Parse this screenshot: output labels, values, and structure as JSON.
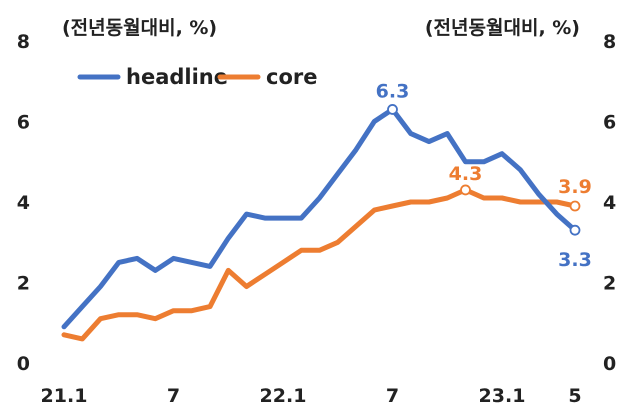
{
  "chart_data": {
    "type": "line",
    "left_axis_unit": "(전년동월대비, %)",
    "right_axis_unit": "(전년동월대비, %)",
    "ylim": [
      0,
      8
    ],
    "y_ticks": [
      "0",
      "2",
      "4",
      "6",
      "8"
    ],
    "x_tick_labels": [
      "21.1",
      "7",
      "22.1",
      "7",
      "23.1",
      "5"
    ],
    "x": [
      "21.1",
      "21.2",
      "21.3",
      "21.4",
      "21.5",
      "21.6",
      "21.7",
      "21.8",
      "21.9",
      "21.10",
      "21.11",
      "21.12",
      "22.1",
      "22.2",
      "22.3",
      "22.4",
      "22.5",
      "22.6",
      "22.7",
      "22.8",
      "22.9",
      "22.10",
      "22.11",
      "22.12",
      "23.1",
      "23.2",
      "23.3",
      "23.4",
      "23.5"
    ],
    "series": [
      {
        "name": "headline",
        "color": "#4472C4",
        "values": [
          0.9,
          1.4,
          1.9,
          2.5,
          2.6,
          2.3,
          2.6,
          2.5,
          2.4,
          3.1,
          3.7,
          3.6,
          3.6,
          3.6,
          4.1,
          4.7,
          5.3,
          6.0,
          6.3,
          5.7,
          5.5,
          5.7,
          5.0,
          5.0,
          5.2,
          4.8,
          4.2,
          3.7,
          3.3
        ]
      },
      {
        "name": "core",
        "color": "#ED7D31",
        "values": [
          0.7,
          0.6,
          1.1,
          1.2,
          1.2,
          1.1,
          1.3,
          1.3,
          1.4,
          2.3,
          1.9,
          2.2,
          2.5,
          2.8,
          2.8,
          3.0,
          3.4,
          3.8,
          3.9,
          4.0,
          4.0,
          4.1,
          4.3,
          4.1,
          4.1,
          4.0,
          4.0,
          4.0,
          3.9
        ]
      }
    ],
    "annotations": [
      {
        "series": "headline",
        "x": "22.7",
        "value": 6.3,
        "label": "6.3"
      },
      {
        "series": "core",
        "x": "22.11",
        "value": 4.3,
        "label": "4.3"
      },
      {
        "series": "core",
        "x": "23.5",
        "value": 3.9,
        "label": "3.9"
      },
      {
        "series": "headline",
        "x": "23.5",
        "value": 3.3,
        "label": "3.3"
      }
    ],
    "legend_position": "top-left",
    "grid": false
  }
}
